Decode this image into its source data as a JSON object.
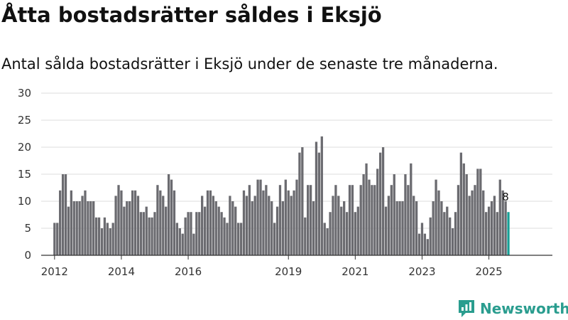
{
  "colors": {
    "bar": "#6b6b70",
    "highlight": "#18a096",
    "grid": "#dddddd",
    "brand": "#2a9d8f"
  },
  "brand": {
    "name": "Newsworthy",
    "icon": "chart-bubble-icon"
  },
  "chart_data": {
    "type": "bar",
    "title": "Åtta bostadsrätter såldes i Eksjö",
    "subtitle": "Antal sålda bostadsrätter i Eksjö under de senaste tre månaderna.",
    "xlabel": "",
    "ylabel": "",
    "ylim": [
      0,
      30
    ],
    "yticks": [
      0,
      5,
      10,
      15,
      20,
      25,
      30
    ],
    "x_start": 2012.0,
    "x_step": 0.0833333,
    "x_range": [
      2011.6,
      2026.9
    ],
    "xticks": [
      {
        "year": 2012,
        "label": "2012"
      },
      {
        "year": 2014,
        "label": "2014"
      },
      {
        "year": 2016,
        "label": "2016"
      },
      {
        "year": 2019,
        "label": "2019"
      },
      {
        "year": 2021,
        "label": "2021"
      },
      {
        "year": 2023,
        "label": "2023"
      },
      {
        "year": 2025,
        "label": "2025"
      }
    ],
    "values": [
      6,
      6,
      12,
      15,
      15,
      9,
      12,
      10,
      10,
      10,
      11,
      12,
      10,
      10,
      10,
      7,
      7,
      5,
      7,
      6,
      5,
      6,
      11,
      13,
      12,
      9,
      10,
      10,
      12,
      12,
      11,
      8,
      8,
      9,
      7,
      7,
      8,
      13,
      12,
      11,
      9,
      15,
      14,
      12,
      6,
      5,
      4,
      7,
      8,
      8,
      4,
      8,
      8,
      11,
      9,
      12,
      12,
      11,
      10,
      9,
      8,
      7,
      6,
      11,
      10,
      9,
      6,
      6,
      12,
      11,
      13,
      10,
      11,
      14,
      14,
      12,
      13,
      11,
      10,
      6,
      9,
      13,
      10,
      14,
      12,
      11,
      12,
      14,
      19,
      20,
      7,
      13,
      13,
      10,
      21,
      19,
      22,
      6,
      5,
      8,
      11,
      13,
      11,
      9,
      10,
      8,
      13,
      13,
      8,
      9,
      13,
      15,
      17,
      14,
      13,
      13,
      16,
      19,
      20,
      9,
      11,
      13,
      15,
      10,
      10,
      10,
      15,
      13,
      17,
      11,
      10,
      4,
      6,
      4,
      3,
      7,
      10,
      14,
      12,
      10,
      8,
      9,
      7,
      5,
      8,
      13,
      19,
      17,
      15,
      11,
      12,
      13,
      16,
      16,
      12,
      8,
      9,
      10,
      11,
      8,
      14,
      12,
      10,
      8
    ],
    "highlight_last": true,
    "last_value_label": "8"
  }
}
